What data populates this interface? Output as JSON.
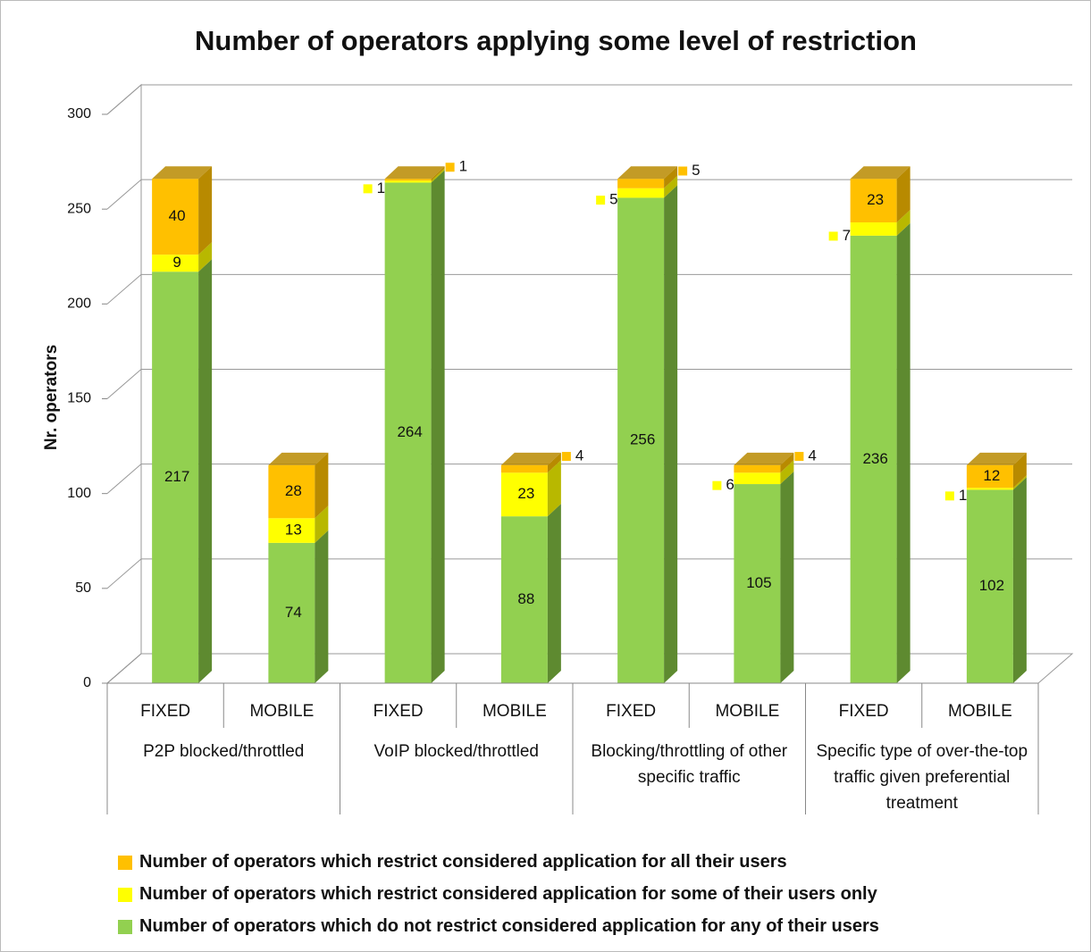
{
  "chart_data": {
    "type": "bar3d_stacked",
    "title": "Number of operators applying some level of restriction",
    "y_label": "Nr. operators",
    "categories": [
      "FIXED",
      "MOBILE",
      "FIXED",
      "MOBILE",
      "FIXED",
      "MOBILE",
      "FIXED",
      "MOBILE"
    ],
    "groups": [
      "P2P blocked/throttled",
      "VoIP blocked/throttled",
      "Blocking/throttling of other specific traffic",
      "Specific type of over-the-top traffic given preferential treatment"
    ],
    "series": [
      {
        "name": "Number of operators which do not restrict considered application for any of their users",
        "color": "#92d050",
        "side": "#5e8a30",
        "values": [
          217,
          74,
          264,
          88,
          256,
          105,
          236,
          102
        ]
      },
      {
        "name": "Number of operators which restrict considered application for some of their users only",
        "color": "#ffff00",
        "side": "#b8b800",
        "values": [
          9,
          13,
          1,
          23,
          5,
          6,
          7,
          1
        ]
      },
      {
        "name": "Number of operators which restrict considered application for all their users",
        "color": "#ffc000",
        "side": "#b88a00",
        "values": [
          40,
          28,
          1,
          4,
          5,
          4,
          23,
          12
        ]
      }
    ],
    "ylim": [
      0,
      300
    ],
    "yticks": [
      0,
      50,
      100,
      150,
      200,
      250,
      300
    ],
    "grid": true
  }
}
